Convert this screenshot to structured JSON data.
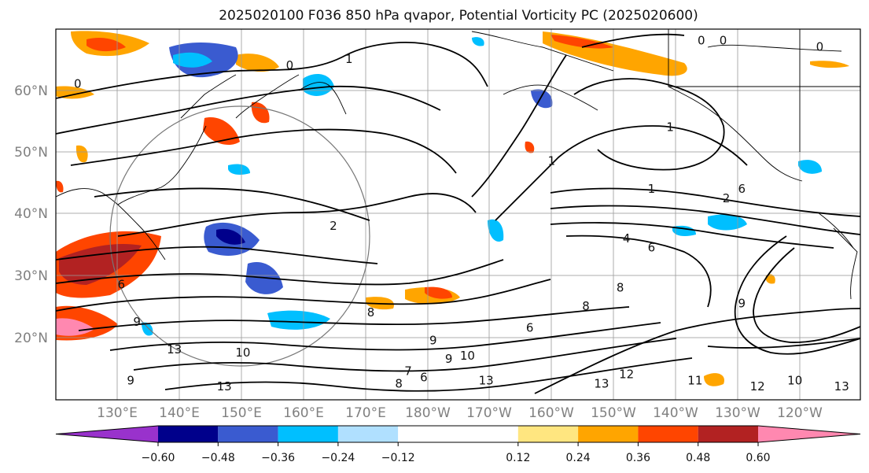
{
  "chart_data": {
    "type": "contour-map",
    "title": "2025020100 F036 850 hPa qvapor, Potential Vorticity PC (2025020600)",
    "lat_ticks": [
      "60°N",
      "50°N",
      "40°N",
      "30°N",
      "20°N"
    ],
    "lat_values": [
      60,
      50,
      40,
      30,
      20
    ],
    "lon_ticks": [
      "130°E",
      "140°E",
      "150°E",
      "160°E",
      "170°E",
      "180°W",
      "170°W",
      "160°W",
      "150°W",
      "140°W",
      "130°W",
      "120°W"
    ],
    "lon_values": [
      130,
      140,
      150,
      160,
      170,
      180,
      190,
      200,
      210,
      220,
      230,
      240
    ],
    "lon_range": [
      121,
      250
    ],
    "lat_range": [
      10,
      70
    ],
    "grid": true,
    "colorbar": {
      "orientation": "horizontal",
      "extend": "both",
      "boundaries": [
        -0.72,
        -0.6,
        -0.48,
        -0.36,
        -0.24,
        -0.12,
        0.12,
        0.24,
        0.36,
        0.48,
        0.6,
        0.72
      ],
      "tick_labels": [
        "−0.60",
        "−0.48",
        "−0.36",
        "−0.24",
        "−0.12",
        "0.12",
        "0.24",
        "0.36",
        "0.48",
        "0.60"
      ],
      "tick_values": [
        -0.6,
        -0.48,
        -0.36,
        -0.24,
        -0.12,
        0.12,
        0.24,
        0.36,
        0.48,
        0.6
      ],
      "colors": [
        "#9932cc",
        "#00008b",
        "#3a5bd0",
        "#00bfff",
        "#b0e0ff",
        "#ffffff",
        "#ffe680",
        "#ffa500",
        "#ff4500",
        "#b22222",
        "#ff88b0"
      ]
    },
    "contour_labels": [
      {
        "text": "0",
        "lon": 124.5,
        "lat": 60.5
      },
      {
        "text": "0",
        "lon": 158.5,
        "lat": 63.5
      },
      {
        "text": "1",
        "lon": 168,
        "lat": 64.5
      },
      {
        "text": "0",
        "lon": 224.5,
        "lat": 67.5
      },
      {
        "text": "0",
        "lon": 228,
        "lat": 67.5
      },
      {
        "text": "0",
        "lon": 243.5,
        "lat": 66.5
      },
      {
        "text": "1",
        "lon": 219.5,
        "lat": 53.5
      },
      {
        "text": "1",
        "lon": 200.5,
        "lat": 48
      },
      {
        "text": "1",
        "lon": 216.5,
        "lat": 43.5
      },
      {
        "text": "2",
        "lon": 228.5,
        "lat": 42
      },
      {
        "text": "2",
        "lon": 165.5,
        "lat": 37.5
      },
      {
        "text": "4",
        "lon": 212.5,
        "lat": 35.5
      },
      {
        "text": "6",
        "lon": 216.5,
        "lat": 34
      },
      {
        "text": "8",
        "lon": 211.5,
        "lat": 27.5
      },
      {
        "text": "6",
        "lon": 231,
        "lat": 43.5
      },
      {
        "text": "6",
        "lon": 131.5,
        "lat": 28
      },
      {
        "text": "9",
        "lon": 134,
        "lat": 22
      },
      {
        "text": "13",
        "lon": 140,
        "lat": 17.5
      },
      {
        "text": "10",
        "lon": 151,
        "lat": 17
      },
      {
        "text": "8",
        "lon": 171.5,
        "lat": 23.5
      },
      {
        "text": "9",
        "lon": 181.5,
        "lat": 19
      },
      {
        "text": "6",
        "lon": 197,
        "lat": 21
      },
      {
        "text": "9",
        "lon": 184,
        "lat": 16
      },
      {
        "text": "10",
        "lon": 187,
        "lat": 16.5
      },
      {
        "text": "7",
        "lon": 177.5,
        "lat": 14
      },
      {
        "text": "6",
        "lon": 180,
        "lat": 13
      },
      {
        "text": "8",
        "lon": 176,
        "lat": 12
      },
      {
        "text": "13",
        "lon": 190,
        "lat": 12.5
      },
      {
        "text": "12",
        "lon": 212.5,
        "lat": 13.5
      },
      {
        "text": "13",
        "lon": 208.5,
        "lat": 12
      },
      {
        "text": "11",
        "lon": 223.5,
        "lat": 12.5
      },
      {
        "text": "12",
        "lon": 233.5,
        "lat": 11.5
      },
      {
        "text": "10",
        "lon": 239.5,
        "lat": 12.5
      },
      {
        "text": "13",
        "lon": 247,
        "lat": 11.5
      },
      {
        "text": "13",
        "lon": 148,
        "lat": 11.5
      },
      {
        "text": "9",
        "lon": 133,
        "lat": 12.5
      },
      {
        "text": "9",
        "lon": 231,
        "lat": 25
      },
      {
        "text": "8",
        "lon": 206,
        "lat": 24.5
      }
    ]
  }
}
